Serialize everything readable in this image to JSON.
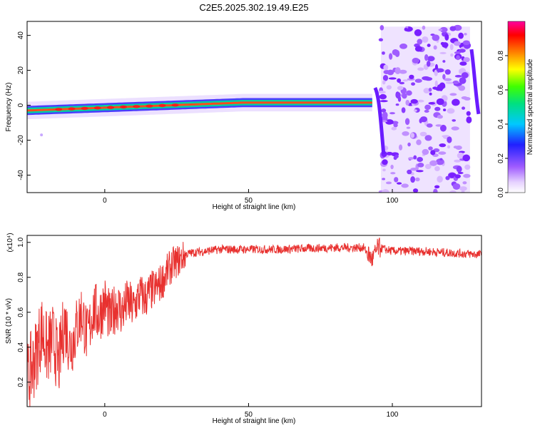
{
  "title": "C2E5.2025.302.19.49.E25",
  "chart_data": [
    {
      "type": "heatmap",
      "name": "doppler-spectrum",
      "xlabel": "Height of straight line (km)",
      "ylabel": "Frequency (Hz)",
      "xlim": [
        -27,
        131
      ],
      "ylim": [
        -50,
        48
      ],
      "xticks": [
        0,
        50,
        100
      ],
      "yticks": [
        -40,
        -20,
        0,
        20,
        40
      ],
      "colorbar": {
        "label": "Normalized spectral amplitude",
        "range": [
          0,
          1
        ],
        "ticks": [
          "0.0",
          "0.2",
          "0.4",
          "0.6",
          "0.8"
        ]
      },
      "features": [
        {
          "name": "main-echo-ridge",
          "x_range": [
            -27,
            93
          ],
          "frequency_hz": [
            -3,
            1.5
          ],
          "amplitude": 0.95
        },
        {
          "name": "noise-region",
          "x_range": [
            96,
            127
          ],
          "frequency_hz": [
            -50,
            45
          ],
          "amplitude": 0.15
        },
        {
          "name": "left-edge-spot",
          "x": -22,
          "frequency_hz": -17,
          "amplitude": 0.1
        }
      ]
    },
    {
      "type": "line",
      "name": "snr",
      "xlabel": "Height of straight line (km)",
      "ylabel": "SNR (10 * v/v)",
      "yscale_label": "(x10⁴)",
      "xlim": [
        -27,
        131
      ],
      "ylim": [
        0.06,
        1.04
      ],
      "xticks": [
        0,
        50,
        100
      ],
      "yticks": [
        0.2,
        0.4,
        0.6,
        0.8,
        1.0
      ],
      "ytick_labels": [
        "0.2",
        "0.4",
        "0.6",
        "0.8",
        "1.0"
      ],
      "series": [
        {
          "name": "SNR",
          "color": "#e8312f",
          "x": [
            -27,
            -24,
            -22,
            -20,
            -18,
            -16,
            -14,
            -12,
            -10,
            -8,
            -6,
            -4,
            -2,
            0,
            2,
            4,
            6,
            8,
            10,
            12,
            14,
            16,
            18,
            20,
            22,
            24,
            26,
            28,
            30,
            35,
            40,
            50,
            60,
            70,
            80,
            90,
            93,
            95,
            100,
            110,
            120,
            131
          ],
          "values": [
            0.2,
            0.35,
            0.5,
            0.38,
            0.45,
            0.3,
            0.55,
            0.4,
            0.5,
            0.6,
            0.45,
            0.62,
            0.58,
            0.66,
            0.55,
            0.65,
            0.6,
            0.66,
            0.62,
            0.7,
            0.68,
            0.72,
            0.74,
            0.78,
            0.84,
            0.88,
            0.9,
            0.93,
            0.94,
            0.95,
            0.96,
            0.96,
            0.96,
            0.965,
            0.97,
            0.97,
            0.9,
            0.97,
            0.95,
            0.95,
            0.94,
            0.93
          ]
        }
      ]
    }
  ]
}
